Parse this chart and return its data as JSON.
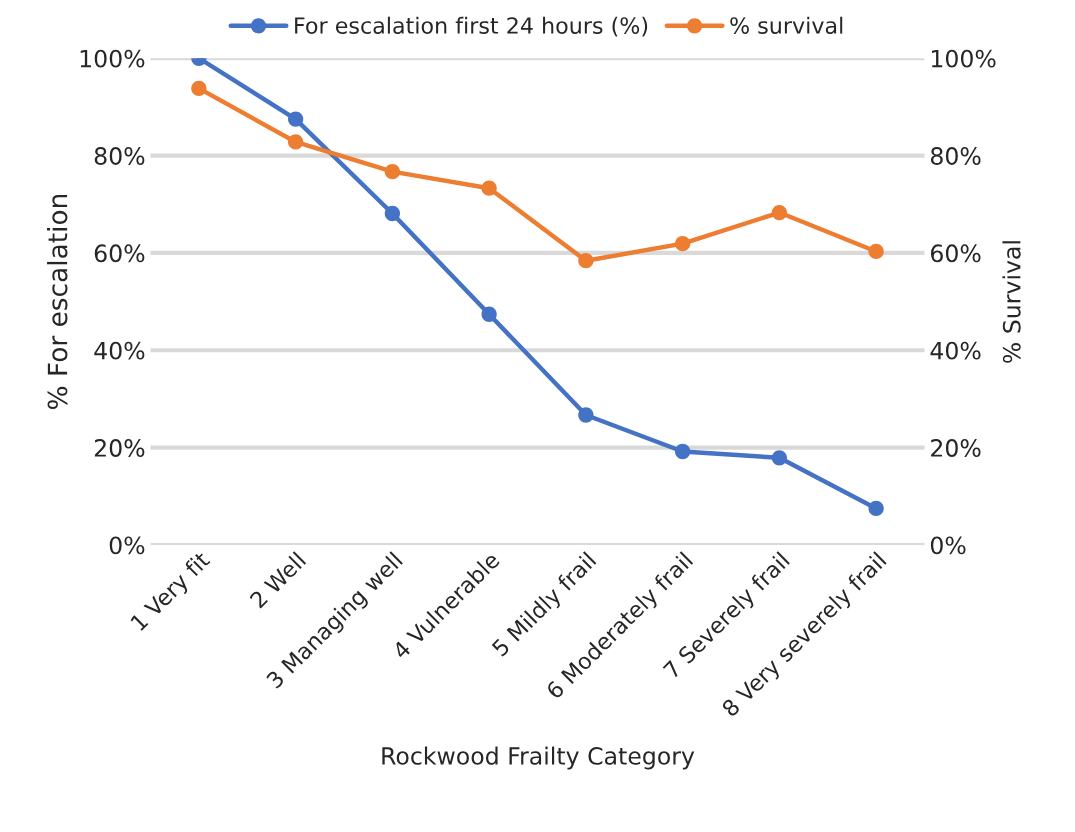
{
  "chart_data": {
    "type": "line",
    "categories": [
      "1 Very fit",
      "2 Well",
      "3 Managing well",
      "4 Vulnerable",
      "5 Mildly frail",
      "6 Moderately frail",
      "7 Severely frail",
      "8 Very severely frail"
    ],
    "series": [
      {
        "name": "For escalation first 24 hours (%)",
        "color": "#4472c4",
        "values": [
          100,
          87.5,
          68.1,
          47.4,
          26.7,
          19.2,
          17.9,
          7.5
        ]
      },
      {
        "name": "% survival",
        "color": "#ed7d31",
        "axis": "y2",
        "values": [
          93.8,
          82.8,
          76.7,
          73.3,
          58.4,
          61.9,
          68.3,
          60.3
        ]
      }
    ],
    "xlabel": "Rockwood Frailty Category",
    "ylabel": "% For escalation",
    "y2label": "% Survival",
    "ylim": [
      0,
      100
    ],
    "yticks": [
      {
        "value": 0,
        "label": "0%"
      },
      {
        "value": 20,
        "label": "20%"
      },
      {
        "value": 40,
        "label": "40%"
      },
      {
        "value": 60,
        "label": "60%"
      },
      {
        "value": 80,
        "label": "80%"
      },
      {
        "value": 100,
        "label": "100%"
      }
    ],
    "y2lim": [
      0,
      100
    ],
    "y2ticks": [
      {
        "value": 0,
        "label": "0%"
      },
      {
        "value": 20,
        "label": "20%"
      },
      {
        "value": 40,
        "label": "40%"
      },
      {
        "value": 60,
        "label": "60%"
      },
      {
        "value": 80,
        "label": "80%"
      },
      {
        "value": 100,
        "label": "100%"
      }
    ],
    "grid": "y",
    "legend": "top",
    "marker": "circle",
    "line_style": "solid"
  }
}
